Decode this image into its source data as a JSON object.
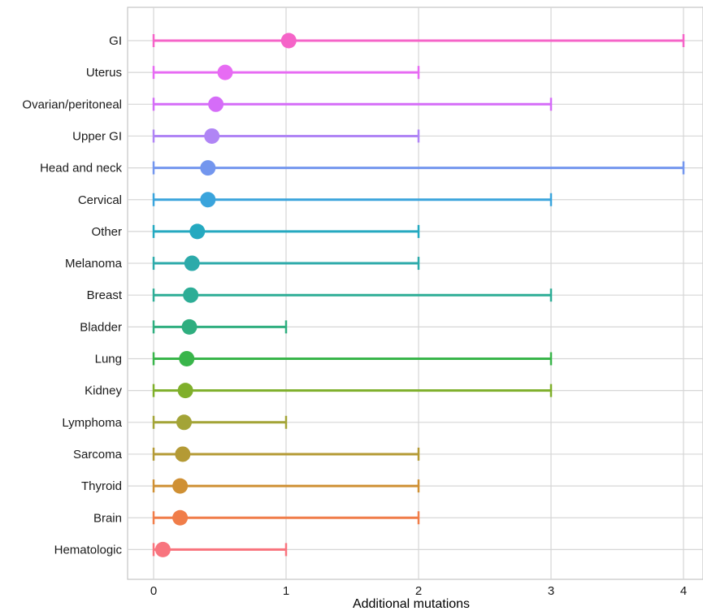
{
  "chart_data": {
    "type": "dot-errorbar",
    "xlabel": "Additional mutations",
    "ylabel": "",
    "xlim": [
      0,
      4
    ],
    "xticks": [
      "0",
      "1",
      "2",
      "3",
      "4"
    ],
    "grid": true,
    "legend": "none",
    "categories": [
      {
        "name": "GI",
        "mean": 1.02,
        "low": 0,
        "high": 4,
        "color": "#F564C8"
      },
      {
        "name": "Uterus",
        "mean": 0.54,
        "low": 0,
        "high": 2,
        "color": "#E76BF3"
      },
      {
        "name": "Ovarian/peritoneal",
        "mean": 0.47,
        "low": 0,
        "high": 3,
        "color": "#D56CF8"
      },
      {
        "name": "Upper GI",
        "mean": 0.44,
        "low": 0,
        "high": 2,
        "color": "#B085F5"
      },
      {
        "name": "Head and  neck",
        "mean": 0.41,
        "low": 0,
        "high": 4,
        "color": "#7396EE"
      },
      {
        "name": "Cervical",
        "mean": 0.41,
        "low": 0,
        "high": 3,
        "color": "#3AA4DC"
      },
      {
        "name": "Other",
        "mean": 0.33,
        "low": 0,
        "high": 2,
        "color": "#25A9C0"
      },
      {
        "name": "Melanoma",
        "mean": 0.29,
        "low": 0,
        "high": 2,
        "color": "#2CAAAA"
      },
      {
        "name": "Breast",
        "mean": 0.28,
        "low": 0,
        "high": 3,
        "color": "#2DAD96"
      },
      {
        "name": "Bladder",
        "mean": 0.27,
        "low": 0,
        "high": 1,
        "color": "#2FAE7F"
      },
      {
        "name": "Lung",
        "mean": 0.25,
        "low": 0,
        "high": 3,
        "color": "#39B54A"
      },
      {
        "name": "Kidney",
        "mean": 0.24,
        "low": 0,
        "high": 3,
        "color": "#7FAF2B"
      },
      {
        "name": "Lymphoma",
        "mean": 0.23,
        "low": 0,
        "high": 1,
        "color": "#A3A437"
      },
      {
        "name": "Sarcoma",
        "mean": 0.22,
        "low": 0,
        "high": 2,
        "color": "#B49A35"
      },
      {
        "name": "Thyroid",
        "mean": 0.2,
        "low": 0,
        "high": 2,
        "color": "#CF9034"
      },
      {
        "name": "Brain",
        "mean": 0.2,
        "low": 0,
        "high": 2,
        "color": "#F07D49"
      },
      {
        "name": "Hematologic",
        "mean": 0.07,
        "low": 0,
        "high": 1,
        "color": "#F8747E"
      }
    ]
  }
}
